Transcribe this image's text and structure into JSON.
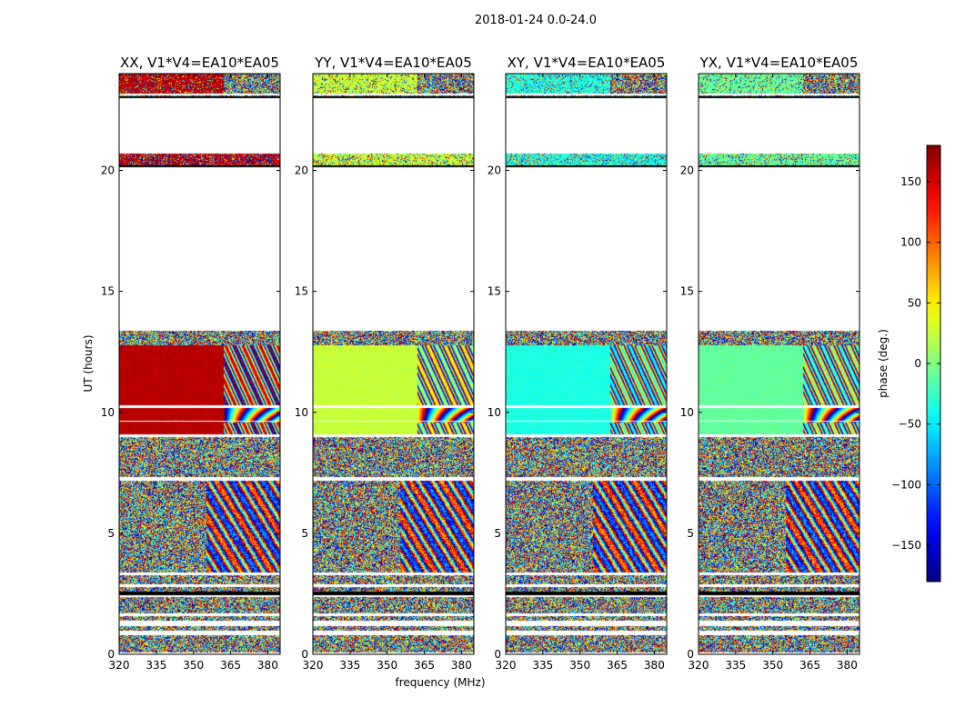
{
  "title": "2018-01-24 0.0-24.0",
  "xlabel": "frequency (MHz)",
  "ylabel": "UT (hours)",
  "colorbar": {
    "label": "phase (deg.)",
    "min": -180,
    "max": 180,
    "ticks": [
      "150",
      "100",
      "50",
      "0",
      "−50",
      "−100",
      "−150"
    ],
    "tick_values": [
      150,
      100,
      50,
      0,
      -50,
      -100,
      -150
    ],
    "colormap": "jet"
  },
  "chart_data": {
    "type": "heatmap",
    "title": "2018-01-24 0.0-24.0",
    "xlabel": "frequency (MHz)",
    "ylabel": "UT (hours)",
    "xlim": [
      320,
      385
    ],
    "ylim": [
      0,
      24
    ],
    "x_ticks": [
      "320",
      "335",
      "350",
      "365",
      "380"
    ],
    "x_tick_values": [
      320,
      335,
      350,
      365,
      380
    ],
    "y_ticks": [
      "0",
      "5",
      "10",
      "15",
      "20"
    ],
    "y_tick_values": [
      0,
      5,
      10,
      15,
      20
    ],
    "value_label": "phase (deg.)",
    "value_range": [
      -180,
      180
    ],
    "panels": [
      {
        "name": "XX",
        "title": "XX, V1*V4=EA10*EA05",
        "coherent_phase_deg": 160
      },
      {
        "name": "YY",
        "title": "YY, V1*V4=EA10*EA05",
        "coherent_phase_deg": 25
      },
      {
        "name": "XY",
        "title": "XY, V1*V4=EA10*EA05",
        "coherent_phase_deg": -35
      },
      {
        "name": "YX",
        "title": "YX, V1*V4=EA10*EA05",
        "coherent_phase_deg": -10
      }
    ],
    "data_gaps_hours": [
      [
        0.0,
        0.1
      ],
      [
        0.8,
        1.0
      ],
      [
        1.2,
        1.4
      ],
      [
        1.6,
        1.7
      ],
      [
        2.4,
        2.6
      ],
      [
        2.8,
        2.9
      ],
      [
        3.3,
        3.4
      ],
      [
        7.2,
        7.35
      ],
      [
        9.0,
        9.1
      ],
      [
        13.4,
        20.2
      ],
      [
        20.7,
        23.0
      ],
      [
        23.1,
        23.2
      ]
    ],
    "coherent_interval_hours": [
      9.1,
      12.8
    ],
    "coherent_band_mhz": [
      320,
      362
    ]
  }
}
